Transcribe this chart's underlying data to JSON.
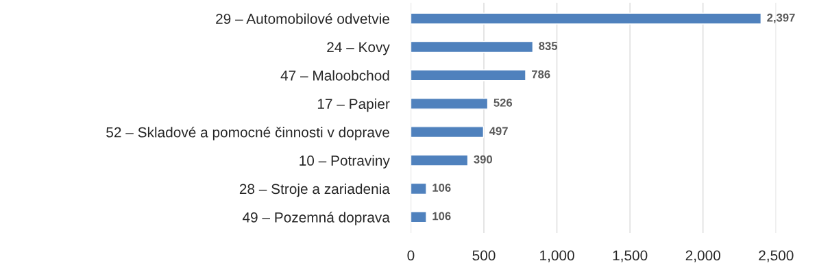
{
  "chart_data": {
    "type": "bar",
    "orientation": "horizontal",
    "categories": [
      "29 – Automobilové odvetvie",
      "24 – Kovy",
      "47 – Maloobchod",
      "17 – Papier",
      "52 – Skladové a pomocné činnosti v doprave",
      "10 – Potraviny",
      "28 – Stroje a zariadenia",
      "49 – Pozemná doprava"
    ],
    "values": [
      2397,
      835,
      786,
      526,
      497,
      390,
      106,
      106
    ],
    "value_labels": [
      "2,397",
      "835",
      "786",
      "526",
      "497",
      "390",
      "106",
      "106"
    ],
    "color": "#4f81bd",
    "xlim": [
      0,
      2500
    ],
    "xticks": [
      0,
      500,
      {
        "value": 1000,
        "label": "1,000"
      },
      {
        "value": 1500,
        "label": "1,500"
      },
      {
        "value": 2000,
        "label": "2,000"
      },
      {
        "value": 2500,
        "label": "2,500"
      }
    ],
    "grid": "x"
  }
}
